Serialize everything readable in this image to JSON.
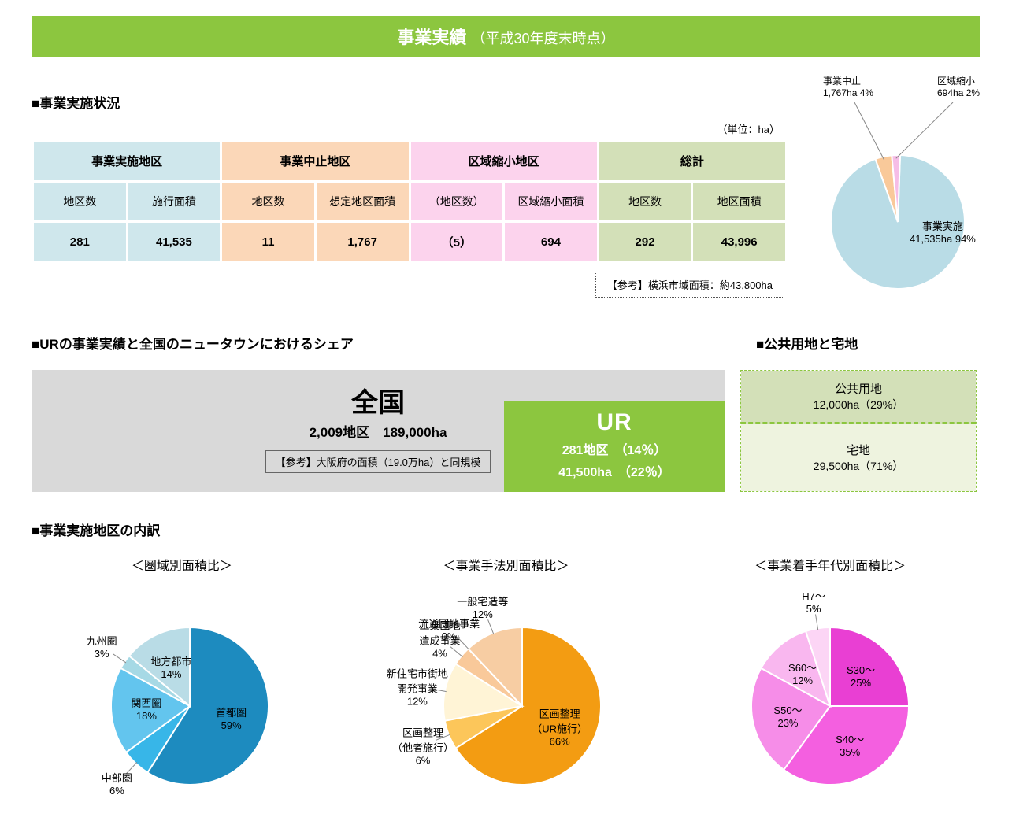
{
  "title_main": "事業実績",
  "title_sub": "（平成30年度末時点）",
  "sec1_heading": "■事業実施状況",
  "unit": "（単位：ha）",
  "table": {
    "groups": [
      {
        "label": "事業実施地区",
        "color": "c-blue",
        "subs": [
          "地区数",
          "施行面積"
        ],
        "vals": [
          "281",
          "41,535"
        ]
      },
      {
        "label": "事業中止地区",
        "color": "c-orange",
        "subs": [
          "地区数",
          "想定地区面積"
        ],
        "vals": [
          "11",
          "1,767"
        ]
      },
      {
        "label": "区域縮小地区",
        "color": "c-pink",
        "subs": [
          "（地区数）",
          "区域縮小面積"
        ],
        "vals": [
          "（5）",
          "694"
        ]
      },
      {
        "label": "総計",
        "color": "c-green",
        "subs": [
          "地区数",
          "地区面積"
        ],
        "vals": [
          "292",
          "43,996"
        ]
      }
    ]
  },
  "ref_yokohama": "【参考】横浜市域面積：約43,800ha",
  "top_pie": {
    "legend_stop_title": "事業中止",
    "legend_stop_val": "1,767ha  4%",
    "legend_shrink_title": "区域縮小",
    "legend_shrink_val": "694ha  2%",
    "main_title": "事業実施",
    "main_val": "41,535ha  94%",
    "slices": [
      {
        "label": "事業実施",
        "pct": 94,
        "color": "#b9dce6"
      },
      {
        "label": "事業中止",
        "pct": 4,
        "color": "#f9c99a"
      },
      {
        "label": "区域縮小",
        "pct": 2,
        "color": "#f6bde7"
      }
    ]
  },
  "sec2_heading": "■URの事業実績と全国のニュータウンにおけるシェア",
  "sec2b_heading": "■公共用地と宅地",
  "national": {
    "title": "全国",
    "line": "2,009地区　189,000ha",
    "ref": "【参考】大阪府の面積（19.0万ha）と同規模"
  },
  "ur": {
    "title": "UR",
    "line1": "281地区　（14％）",
    "line2": "41,500ha　（22％）"
  },
  "land": {
    "top_title": "公共用地",
    "top_val": "12,000ha（29%）",
    "bot_title": "宅地",
    "bot_val": "29,500ha（71%）"
  },
  "sec3_heading": "■事業実施地区の内訳",
  "pie1": {
    "title": "＜圏域別面積比＞",
    "slices": [
      {
        "label": "首都圏",
        "pct": 59,
        "color": "#1d8bbf"
      },
      {
        "label": "中部圏",
        "pct": 6,
        "color": "#37b6e8"
      },
      {
        "label": "関西圏",
        "pct": 18,
        "color": "#63c5ee"
      },
      {
        "label": "九州圏",
        "pct": 3,
        "color": "#a6d9e5"
      },
      {
        "label": "地方都市",
        "pct": 14,
        "color": "#b9dce6"
      }
    ]
  },
  "pie2": {
    "title": "＜事業手法別面積比＞",
    "slices": [
      {
        "label": "区画整理\\n（UR施行）",
        "pct": 66,
        "color": "#f39c12"
      },
      {
        "label": "区画整理\\n（他者施行）",
        "pct": 6,
        "color": "#fcc65a"
      },
      {
        "label": "新住宅市街地\\n開発事業",
        "pct": 12,
        "color": "#fff4d6"
      },
      {
        "label": "工業団地\\n造成事業",
        "pct": 4,
        "color": "#f9c99a"
      },
      {
        "label": "流通団地事業",
        "pct": 0,
        "color": "#f7b87a"
      },
      {
        "label": "一般宅造等",
        "pct": 12,
        "color": "#f7cda3"
      }
    ]
  },
  "pie3": {
    "title": "＜事業着手年代別面積比＞",
    "slices": [
      {
        "label": "S30～",
        "pct": 25,
        "color": "#e93fd3"
      },
      {
        "label": "S40～",
        "pct": 35,
        "color": "#f45fe0"
      },
      {
        "label": "S50～",
        "pct": 23,
        "color": "#f68de8"
      },
      {
        "label": "S60～",
        "pct": 12,
        "color": "#f9b7ef"
      },
      {
        "label": "H7～",
        "pct": 5,
        "color": "#fcd5f5"
      }
    ]
  }
}
